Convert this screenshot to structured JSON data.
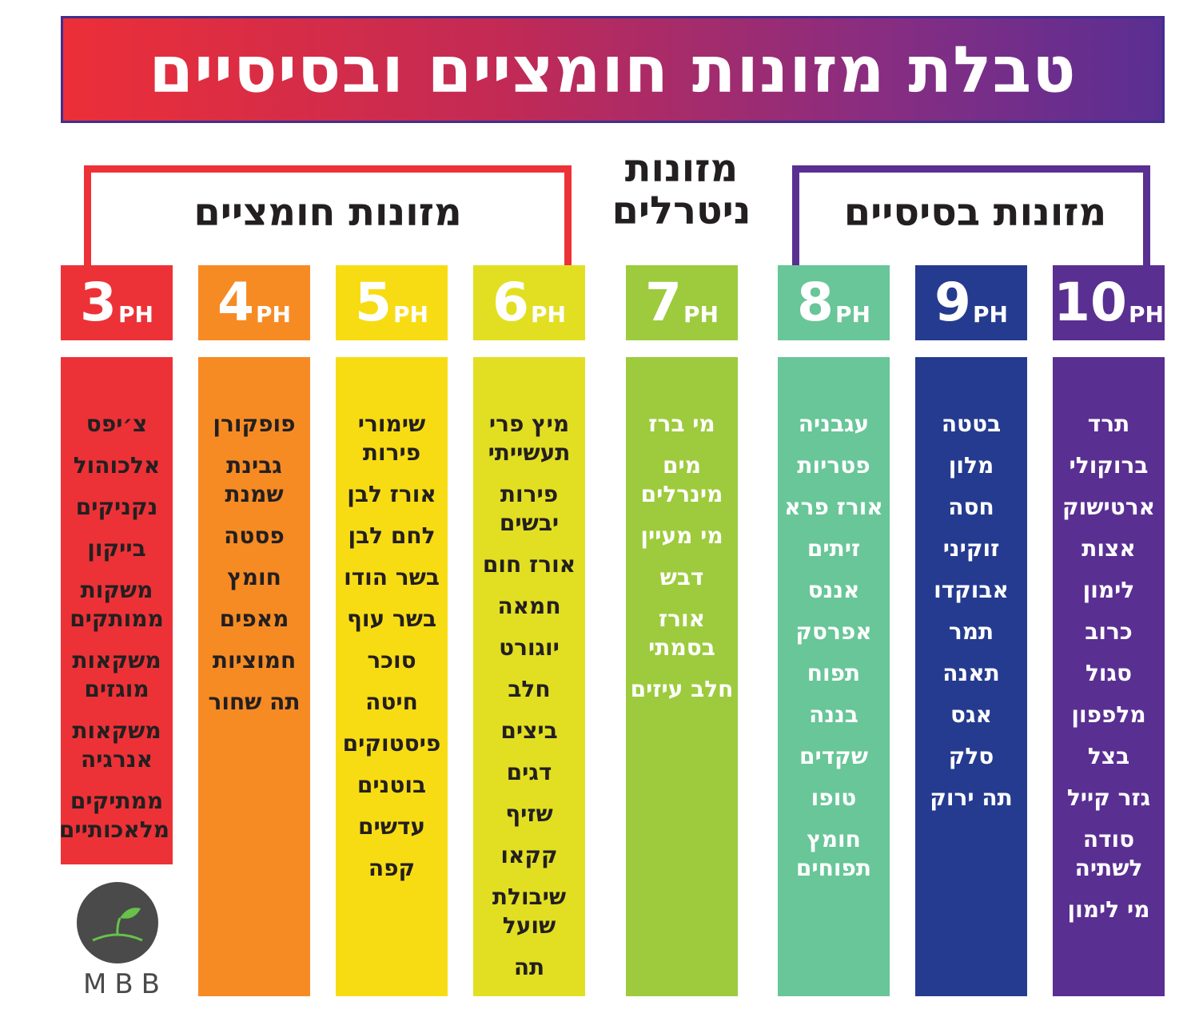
{
  "title": "טבלת מזונות חומציים ובסיסיים",
  "groups": {
    "acidic": "מזונות חומציים",
    "neutral": "מזונות ניטרלים",
    "basic": "מזונות בסיסיים"
  },
  "ph_unit": "PH",
  "columns": [
    {
      "ph": "3",
      "color": "#ec3237",
      "text_color": "#231f20",
      "items": [
        "צ׳יפס",
        "אלכוהול",
        "נקניקים",
        "בייקון",
        "משקות ממותקים",
        "משקאות מוגזים",
        "משקאות אנרגיה",
        "ממתיקים מלאכותיים"
      ]
    },
    {
      "ph": "4",
      "color": "#f68b24",
      "text_color": "#231f20",
      "items": [
        "פופקורן",
        "גבינת שמנת",
        "פסטה",
        "חומץ",
        "מאפים",
        "חמוציות",
        "תה שחור"
      ]
    },
    {
      "ph": "5",
      "color": "#f8dc13",
      "text_color": "#231f20",
      "items": [
        "שימורי פירות",
        "אורז לבן",
        "לחם לבן",
        "בשר הודו",
        "בשר עוף",
        "סוכר",
        "חיטה",
        "פיסטוקים",
        "בוטנים",
        "עדשים",
        "קפה"
      ]
    },
    {
      "ph": "6",
      "color": "#e2df23",
      "text_color": "#231f20",
      "items": [
        "מיץ פרי תעשייתי",
        "פירות יבשים",
        "אורז חום",
        "חמאה",
        "יוגורט",
        "חלב",
        "ביצים",
        "דגים",
        "שזיף",
        "קקאו",
        "שיבולת שועל",
        "תה"
      ]
    },
    {
      "ph": "7",
      "color": "#9dcb3d",
      "text_color": "#ffffff",
      "items": [
        "מי ברז",
        "מים מינרלים",
        "מי מעיין",
        "דבש",
        "אורז בסמתי",
        "חלב עיזים"
      ]
    },
    {
      "ph": "8",
      "color": "#68c698",
      "text_color": "#ffffff",
      "items": [
        "עגבניה",
        "פטריות",
        "אורז פרא",
        "זיתים",
        "אננס",
        "אפרסק",
        "תפוח",
        "בננה",
        "שקדים",
        "טופו",
        "חומץ תפוחים"
      ]
    },
    {
      "ph": "9",
      "color": "#243b8f",
      "text_color": "#ffffff",
      "items": [
        "בטטה",
        "מלון",
        "חסה",
        "זוקיני",
        "אבוקדו",
        "תמר",
        "תאנה",
        "אגס",
        "סלק",
        "תה ירוק"
      ]
    },
    {
      "ph": "10",
      "color": "#5a2f92",
      "text_color": "#ffffff",
      "items": [
        "תרד",
        "ברוקולי",
        "ארטישוק",
        "אצות",
        "לימון",
        "כרוב",
        "סגול",
        "מלפפון",
        "בצל",
        "גזר קייל",
        "סודה לשתיה",
        "מי לימון"
      ]
    }
  ],
  "logo": {
    "text": "MBB",
    "icon": "sprout-apple-icon",
    "color": "#4a4a4a",
    "leaf_color": "#66c24a"
  }
}
